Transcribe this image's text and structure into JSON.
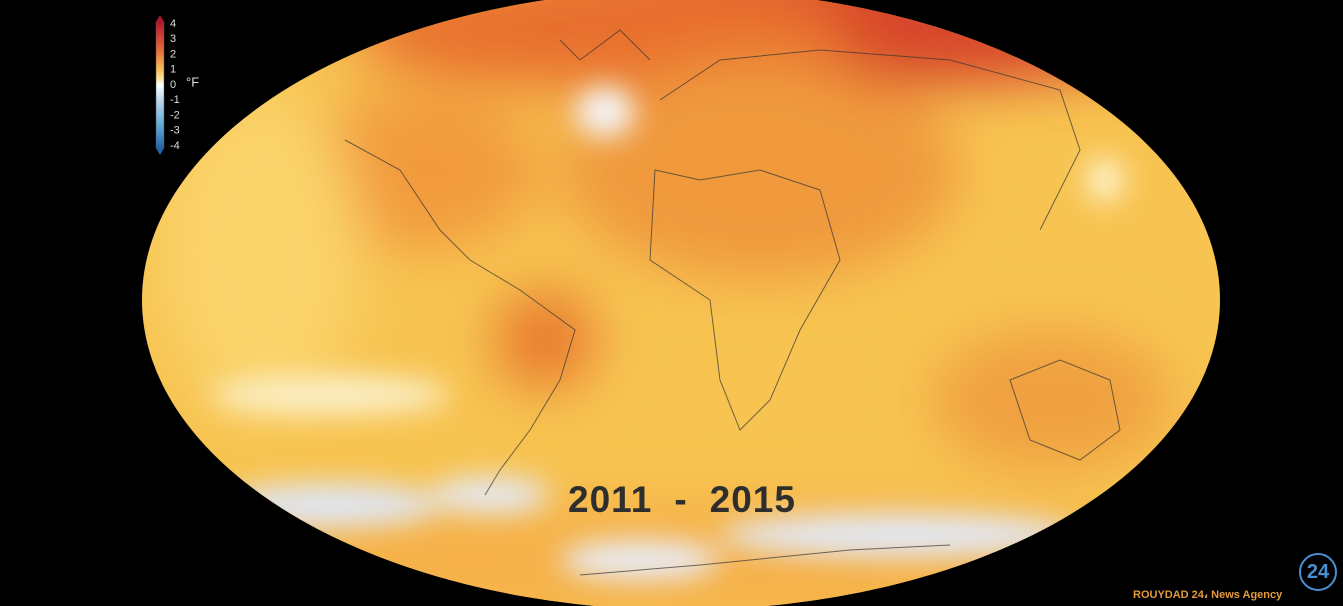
{
  "colorbar": {
    "ticks": [
      4,
      3,
      2,
      1,
      0,
      -1,
      -2,
      -3,
      -4
    ],
    "unit": "°F"
  },
  "period": {
    "start": "2011",
    "separator": "-",
    "end": "2015"
  },
  "watermark": {
    "logo": "24",
    "text": "ROUYDAD 24، News Agency"
  }
}
